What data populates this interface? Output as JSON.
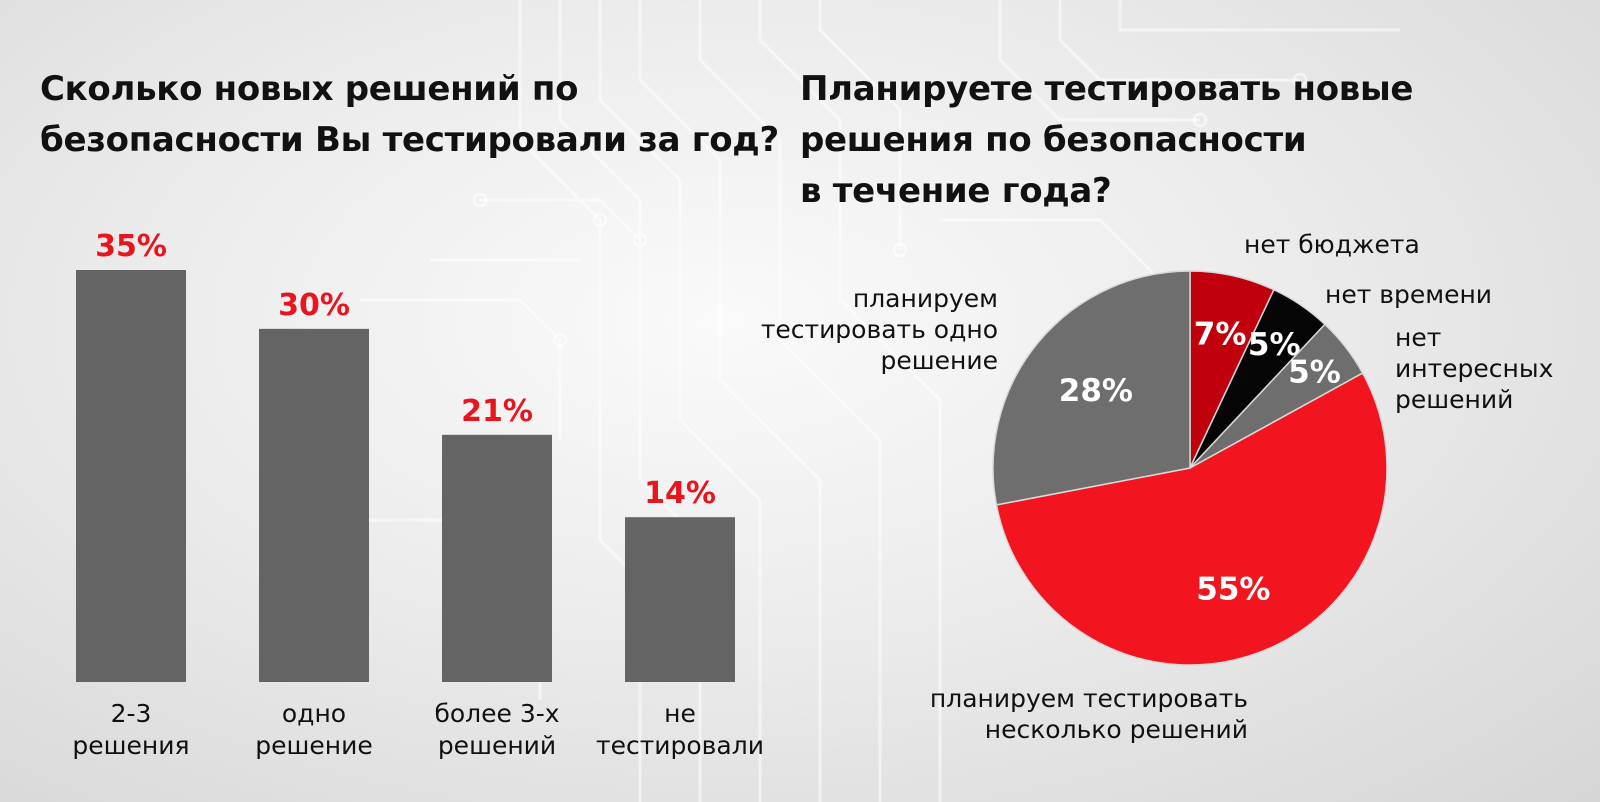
{
  "chart_data": [
    {
      "type": "bar",
      "title": "Сколько новых решений по безопасности Вы тестировали за год?",
      "title_lines": [
        "Сколько новых решений по",
        "безопасности Вы тестировали за год?"
      ],
      "categories": [
        "2-3 решения",
        "одно решение",
        "более 3-х решений",
        "не тестировали"
      ],
      "category_lines": [
        [
          "2-3",
          "решения"
        ],
        [
          "одно",
          "решение"
        ],
        [
          "более 3-х",
          "решений"
        ],
        [
          "не",
          "тестировали"
        ]
      ],
      "values": [
        35,
        30,
        21,
        14
      ],
      "value_labels": [
        "35%",
        "30%",
        "21%",
        "14%"
      ],
      "unit": "%",
      "ylim": [
        0,
        35
      ],
      "grid": false,
      "legend": "none",
      "colors": {
        "bar": "#646464",
        "value_label": "#e8141e"
      }
    },
    {
      "type": "pie",
      "title": "Планируете тестировать новые решения по безопасности в течение года?",
      "title_lines": [
        "Планируете тестировать новые",
        "решения по безопасности",
        "в течение года?"
      ],
      "slices": [
        {
          "label": "нет бюджета",
          "label_lines": [
            "нет бюджета"
          ],
          "value": 7,
          "value_label": "7%",
          "color": "#c0000c"
        },
        {
          "label": "нет времени",
          "label_lines": [
            "нет времени"
          ],
          "value": 5,
          "value_label": "5%",
          "color": "#050505"
        },
        {
          "label": "нет интересных решений",
          "label_lines": [
            "нет",
            "интересных",
            "решений"
          ],
          "value": 5,
          "value_label": "5%",
          "color": "#6e6e6e"
        },
        {
          "label": "планируем тестировать несколько решений",
          "label_lines": [
            "планируем тестировать",
            "несколько решений"
          ],
          "value": 55,
          "value_label": "55%",
          "color": "#f2141e"
        },
        {
          "label": "планируем тестировать одно решение",
          "label_lines": [
            "планируем",
            "тестировать одно",
            "решение"
          ],
          "value": 28,
          "value_label": "28%",
          "color": "#6e6e6e"
        }
      ],
      "start_angle": "12 o'clock",
      "direction": "clockwise",
      "unit": "%",
      "legend": "none"
    }
  ]
}
